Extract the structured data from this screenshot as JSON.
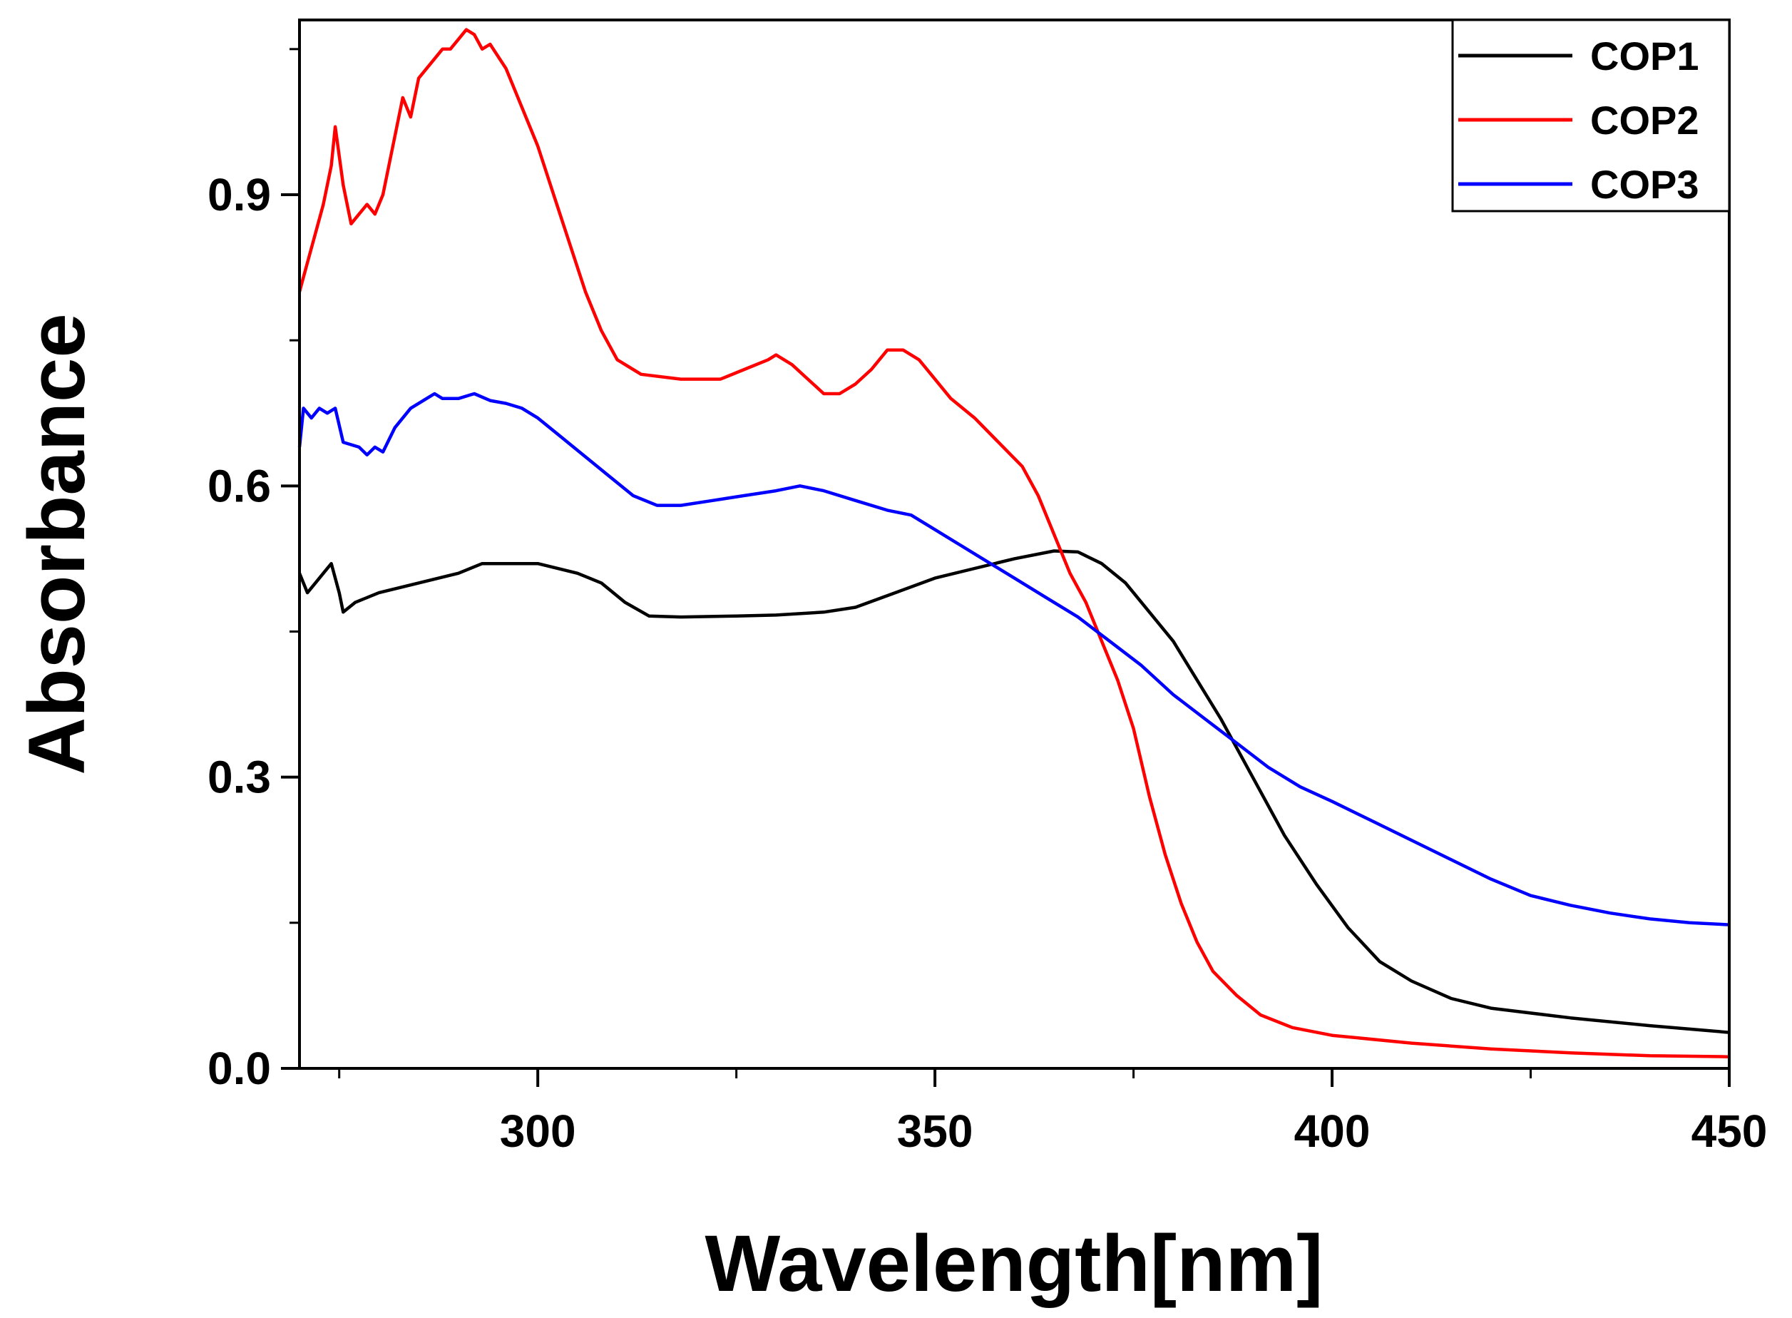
{
  "chart_data": {
    "type": "line",
    "title": "",
    "xlabel": "Wavelength[nm]",
    "ylabel": "Absorbance",
    "xlim": [
      270,
      450
    ],
    "ylim": [
      0.0,
      1.08
    ],
    "x_ticks": [
      300,
      350,
      400,
      450
    ],
    "x_minor_ticks": [
      275,
      325,
      375,
      425
    ],
    "x_tick_labels": [
      "300",
      "350",
      "400",
      "450"
    ],
    "y_ticks": [
      0.0,
      0.3,
      0.6,
      0.9
    ],
    "y_minor_ticks": [
      0.15,
      0.45,
      0.75,
      1.05
    ],
    "y_tick_labels": [
      "0.0",
      "0.3",
      "0.6",
      "0.9"
    ],
    "grid": false,
    "legend_position": "top-right",
    "series": [
      {
        "name": "COP1",
        "color": "#000000",
        "points": [
          [
            270,
            0.51
          ],
          [
            271,
            0.49
          ],
          [
            272,
            0.5
          ],
          [
            273,
            0.51
          ],
          [
            274,
            0.52
          ],
          [
            275,
            0.49
          ],
          [
            275.5,
            0.47
          ],
          [
            277,
            0.48
          ],
          [
            280,
            0.49
          ],
          [
            285,
            0.5
          ],
          [
            290,
            0.51
          ],
          [
            293,
            0.52
          ],
          [
            297,
            0.52
          ],
          [
            300,
            0.52
          ],
          [
            305,
            0.51
          ],
          [
            308,
            0.5
          ],
          [
            311,
            0.48
          ],
          [
            314,
            0.466
          ],
          [
            318,
            0.465
          ],
          [
            325,
            0.466
          ],
          [
            330,
            0.467
          ],
          [
            336,
            0.47
          ],
          [
            340,
            0.475
          ],
          [
            345,
            0.49
          ],
          [
            350,
            0.505
          ],
          [
            355,
            0.515
          ],
          [
            360,
            0.525
          ],
          [
            365,
            0.533
          ],
          [
            368,
            0.532
          ],
          [
            371,
            0.52
          ],
          [
            374,
            0.5
          ],
          [
            377,
            0.47
          ],
          [
            380,
            0.44
          ],
          [
            383,
            0.4
          ],
          [
            386,
            0.36
          ],
          [
            390,
            0.3
          ],
          [
            394,
            0.24
          ],
          [
            398,
            0.19
          ],
          [
            402,
            0.145
          ],
          [
            406,
            0.11
          ],
          [
            410,
            0.09
          ],
          [
            415,
            0.072
          ],
          [
            420,
            0.062
          ],
          [
            430,
            0.052
          ],
          [
            440,
            0.044
          ],
          [
            450,
            0.037
          ]
        ]
      },
      {
        "name": "COP2",
        "color": "#ff0000",
        "points": [
          [
            270,
            0.8
          ],
          [
            271,
            0.83
          ],
          [
            272,
            0.86
          ],
          [
            273,
            0.89
          ],
          [
            274,
            0.93
          ],
          [
            274.5,
            0.97
          ],
          [
            275.5,
            0.91
          ],
          [
            276.5,
            0.87
          ],
          [
            277.5,
            0.88
          ],
          [
            278.5,
            0.89
          ],
          [
            279.5,
            0.88
          ],
          [
            280.5,
            0.9
          ],
          [
            282,
            0.96
          ],
          [
            283,
            1.0
          ],
          [
            284,
            0.98
          ],
          [
            285,
            1.02
          ],
          [
            286,
            1.03
          ],
          [
            287,
            1.04
          ],
          [
            288,
            1.05
          ],
          [
            289,
            1.05
          ],
          [
            290,
            1.06
          ],
          [
            291,
            1.07
          ],
          [
            292,
            1.065
          ],
          [
            293,
            1.05
          ],
          [
            294,
            1.055
          ],
          [
            296,
            1.03
          ],
          [
            298,
            0.99
          ],
          [
            300,
            0.95
          ],
          [
            302,
            0.9
          ],
          [
            304,
            0.85
          ],
          [
            306,
            0.8
          ],
          [
            308,
            0.76
          ],
          [
            310,
            0.73
          ],
          [
            313,
            0.715
          ],
          [
            318,
            0.71
          ],
          [
            323,
            0.71
          ],
          [
            326,
            0.72
          ],
          [
            329,
            0.73
          ],
          [
            330,
            0.735
          ],
          [
            332,
            0.725
          ],
          [
            334,
            0.71
          ],
          [
            336,
            0.695
          ],
          [
            338,
            0.695
          ],
          [
            340,
            0.705
          ],
          [
            342,
            0.72
          ],
          [
            344,
            0.74
          ],
          [
            346,
            0.74
          ],
          [
            348,
            0.73
          ],
          [
            350,
            0.71
          ],
          [
            352,
            0.69
          ],
          [
            355,
            0.67
          ],
          [
            358,
            0.645
          ],
          [
            361,
            0.62
          ],
          [
            363,
            0.59
          ],
          [
            365,
            0.55
          ],
          [
            367,
            0.51
          ],
          [
            369,
            0.48
          ],
          [
            371,
            0.44
          ],
          [
            373,
            0.4
          ],
          [
            375,
            0.35
          ],
          [
            377,
            0.28
          ],
          [
            379,
            0.22
          ],
          [
            381,
            0.17
          ],
          [
            383,
            0.13
          ],
          [
            385,
            0.1
          ],
          [
            388,
            0.075
          ],
          [
            391,
            0.055
          ],
          [
            395,
            0.042
          ],
          [
            400,
            0.034
          ],
          [
            410,
            0.026
          ],
          [
            420,
            0.02
          ],
          [
            430,
            0.016
          ],
          [
            440,
            0.013
          ],
          [
            450,
            0.012
          ]
        ]
      },
      {
        "name": "COP3",
        "color": "#0000ff",
        "points": [
          [
            270,
            0.64
          ],
          [
            270.5,
            0.68
          ],
          [
            271.5,
            0.67
          ],
          [
            272.5,
            0.68
          ],
          [
            273.5,
            0.675
          ],
          [
            274.5,
            0.68
          ],
          [
            275.5,
            0.645
          ],
          [
            277.5,
            0.64
          ],
          [
            278.5,
            0.632
          ],
          [
            279.5,
            0.64
          ],
          [
            280.5,
            0.635
          ],
          [
            282,
            0.66
          ],
          [
            284,
            0.68
          ],
          [
            286,
            0.69
          ],
          [
            287,
            0.695
          ],
          [
            288,
            0.69
          ],
          [
            290,
            0.69
          ],
          [
            292,
            0.695
          ],
          [
            294,
            0.688
          ],
          [
            296,
            0.685
          ],
          [
            298,
            0.68
          ],
          [
            300,
            0.67
          ],
          [
            303,
            0.65
          ],
          [
            306,
            0.63
          ],
          [
            309,
            0.61
          ],
          [
            312,
            0.59
          ],
          [
            315,
            0.58
          ],
          [
            318,
            0.58
          ],
          [
            322,
            0.585
          ],
          [
            326,
            0.59
          ],
          [
            330,
            0.595
          ],
          [
            333,
            0.6
          ],
          [
            336,
            0.595
          ],
          [
            340,
            0.585
          ],
          [
            344,
            0.575
          ],
          [
            347,
            0.57
          ],
          [
            350,
            0.555
          ],
          [
            353,
            0.54
          ],
          [
            356,
            0.525
          ],
          [
            360,
            0.505
          ],
          [
            364,
            0.485
          ],
          [
            368,
            0.465
          ],
          [
            372,
            0.44
          ],
          [
            376,
            0.415
          ],
          [
            380,
            0.385
          ],
          [
            384,
            0.36
          ],
          [
            388,
            0.335
          ],
          [
            392,
            0.31
          ],
          [
            396,
            0.29
          ],
          [
            400,
            0.275
          ],
          [
            405,
            0.255
          ],
          [
            410,
            0.235
          ],
          [
            415,
            0.215
          ],
          [
            420,
            0.195
          ],
          [
            425,
            0.178
          ],
          [
            430,
            0.168
          ],
          [
            435,
            0.16
          ],
          [
            440,
            0.154
          ],
          [
            445,
            0.15
          ],
          [
            450,
            0.148
          ]
        ]
      }
    ]
  }
}
